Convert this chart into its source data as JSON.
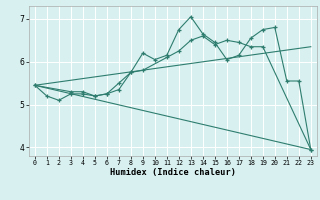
{
  "xlabel": "Humidex (Indice chaleur)",
  "bg_color": "#d8f0f0",
  "line_color": "#2e7d6e",
  "grid_color": "#ffffff",
  "xlim": [
    -0.5,
    23.5
  ],
  "ylim": [
    3.8,
    7.3
  ],
  "xticks": [
    0,
    1,
    2,
    3,
    4,
    5,
    6,
    7,
    8,
    9,
    10,
    11,
    12,
    13,
    14,
    15,
    16,
    17,
    18,
    19,
    20,
    21,
    22,
    23
  ],
  "yticks": [
    4,
    5,
    6,
    7
  ],
  "curve1_x": [
    0,
    1,
    2,
    3,
    4,
    5,
    6,
    7,
    8,
    9,
    10,
    11,
    12,
    13,
    14,
    15,
    16,
    17,
    18,
    19,
    20,
    21,
    22,
    23
  ],
  "curve1_y": [
    5.45,
    5.2,
    5.1,
    5.25,
    5.25,
    5.2,
    5.25,
    5.35,
    5.75,
    6.2,
    6.05,
    6.15,
    6.75,
    7.05,
    6.65,
    6.45,
    6.05,
    6.15,
    6.55,
    6.75,
    6.8,
    5.55,
    5.55,
    3.95
  ],
  "curve2_x": [
    0,
    3,
    4,
    5,
    6,
    7,
    8,
    9,
    11,
    12,
    13,
    14,
    15,
    16,
    17,
    18,
    19,
    23
  ],
  "curve2_y": [
    5.45,
    5.3,
    5.3,
    5.2,
    5.25,
    5.5,
    5.75,
    5.8,
    6.1,
    6.25,
    6.5,
    6.6,
    6.4,
    6.5,
    6.45,
    6.35,
    6.35,
    3.95
  ],
  "line1_x": [
    0,
    23
  ],
  "line1_y": [
    5.45,
    6.35
  ],
  "line2_x": [
    0,
    23
  ],
  "line2_y": [
    5.45,
    3.95
  ]
}
